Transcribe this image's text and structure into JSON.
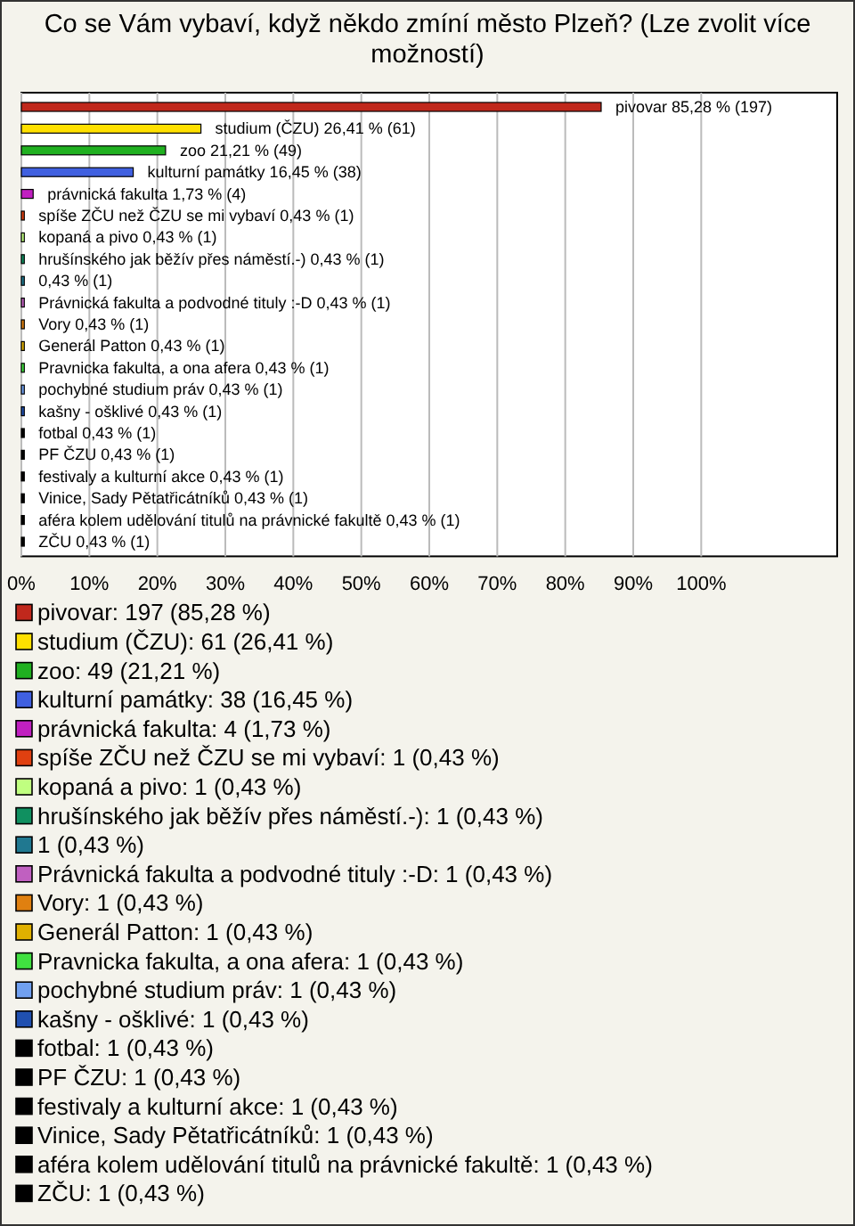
{
  "chart_data": {
    "type": "bar",
    "orientation": "horizontal",
    "title": "Co se Vám vybaví, když někdo zmíní město Plzeň? (Lze zvolit více možností)",
    "categories": [
      "pivovar",
      "studium (ČZU)",
      "zoo",
      "kulturní památky",
      "právnická fakulta",
      "spíše ZČU než ČZU se mi vybaví",
      "kopaná a pivo",
      "hrušínského jak běžív přes náměstí.-)",
      null,
      "Právnická fakulta a podvodné tituly :-D",
      "Vory",
      "Generál Patton",
      "Pravnicka fakulta, a ona afera",
      "pochybné studium práv",
      "kašny - ošklivé",
      "fotbal",
      "PF ČZU",
      "festivaly a kulturní akce",
      "Vinice, Sady Pětatřicátníků",
      "aféra kolem udělování titulů na právnické fakultě",
      "ZČU"
    ],
    "values": [
      85.28,
      26.41,
      21.21,
      16.45,
      1.73,
      0.43,
      0.43,
      0.43,
      0.43,
      0.43,
      0.43,
      0.43,
      0.43,
      0.43,
      0.43,
      0.43,
      0.43,
      0.43,
      0.43,
      0.43,
      0.43
    ],
    "value_labels": [
      "85,28 % (197)",
      "26,41 % (61)",
      "21,21 % (49)",
      "16,45 % (38)",
      "1,73 % (4)",
      "0,43 % (1)",
      "0,43 % (1)",
      "0,43 % (1)",
      "0,43 % (1)",
      "0,43 % (1)",
      "0,43 % (1)",
      "0,43 % (1)",
      "0,43 % (1)",
      "0,43 % (1)",
      "0,43 % (1)",
      "0,43 % (1)",
      "0,43 % (1)",
      "0,43 % (1)",
      "0,43 % (1)",
      "0,43 % (1)",
      "0,43 % (1)"
    ],
    "colors": [
      "#c0281c",
      "#ffe000",
      "#20b020",
      "#4060e0",
      "#c020c0",
      "#e04010",
      "#c0ff80",
      "#109060",
      "#207890",
      "#c060c0",
      "#e08010",
      "#e0b000",
      "#40e040",
      "#70a0f0",
      "#2050b0",
      "#000000",
      "#000000",
      "#000000",
      "#000000",
      "#000000",
      "#000000"
    ],
    "annotations": [
      "pivovar: 197 (85,28 %)",
      "studium (ČZU): 61 (26,41 %)",
      "zoo: 49 (21,21 %)",
      "kulturní památky: 38 (16,45 %)",
      "právnická fakulta: 4 (1,73 %)",
      "spíše ZČU než ČZU se mi vybaví: 1 (0,43 %)",
      "kopaná a pivo: 1 (0,43 %)",
      "hrušínského jak běžív přes náměstí.-): 1 (0,43 %)",
      "1 (0,43 %)",
      "Právnická fakulta a podvodné tituly :-D: 1 (0,43 %)",
      "Vory: 1 (0,43 %)",
      "Generál Patton: 1 (0,43 %)",
      "Pravnicka fakulta, a ona afera: 1 (0,43 %)",
      "pochybné studium práv: 1 (0,43 %)",
      "kašny - ošklivé: 1 (0,43 %)",
      "fotbal: 1 (0,43 %)",
      "PF ČZU: 1 (0,43 %)",
      "festivaly a kulturní akce: 1 (0,43 %)",
      "Vinice, Sady Pětatřicátníků: 1 (0,43 %)",
      "aféra kolem udělování titulů na právnické fakultě: 1 (0,43 %)",
      "ZČU: 1 (0,43 %)"
    ],
    "xlim": [
      0,
      120
    ],
    "xticks": [
      {
        "value": 0,
        "label": "0%"
      },
      {
        "value": 10,
        "label": "10%"
      },
      {
        "value": 20,
        "label": "20%"
      },
      {
        "value": 30,
        "label": "30%"
      },
      {
        "value": 40,
        "label": "40%"
      },
      {
        "value": 50,
        "label": "50%"
      },
      {
        "value": 60,
        "label": "60%"
      },
      {
        "value": 70,
        "label": "70%"
      },
      {
        "value": 80,
        "label": "80%"
      },
      {
        "value": 90,
        "label": "90%"
      },
      {
        "value": 100,
        "label": "100%"
      }
    ],
    "grid": "x",
    "tick_labels": "x"
  }
}
